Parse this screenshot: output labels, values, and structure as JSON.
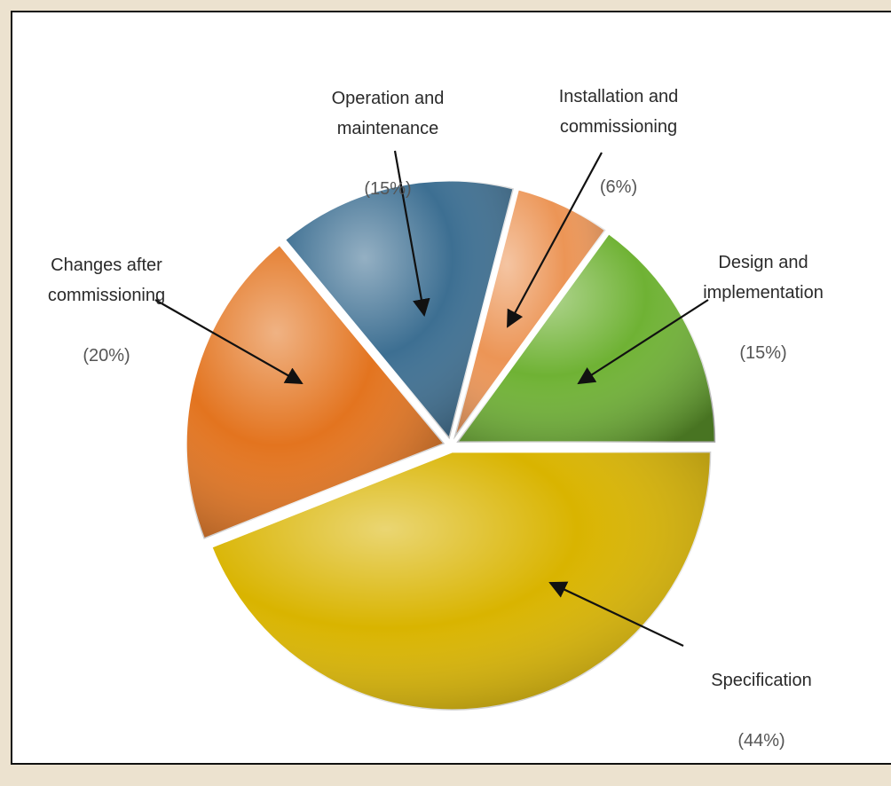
{
  "chart_data": {
    "type": "pie",
    "categories": [
      "Specification",
      "Changes after\ncommissioning",
      "Operation and\nmaintenance",
      "Installation and\ncommissioning",
      "Design and\nimplementation"
    ],
    "values": [
      44,
      20,
      15,
      6,
      15
    ],
    "value_labels": [
      "(44%)",
      "(20%)",
      "(15%)",
      "(6%)",
      "(15%)"
    ],
    "colors": [
      "#d9b400",
      "#e3741f",
      "#3d6f92",
      "#ec9556",
      "#6fb234"
    ]
  }
}
